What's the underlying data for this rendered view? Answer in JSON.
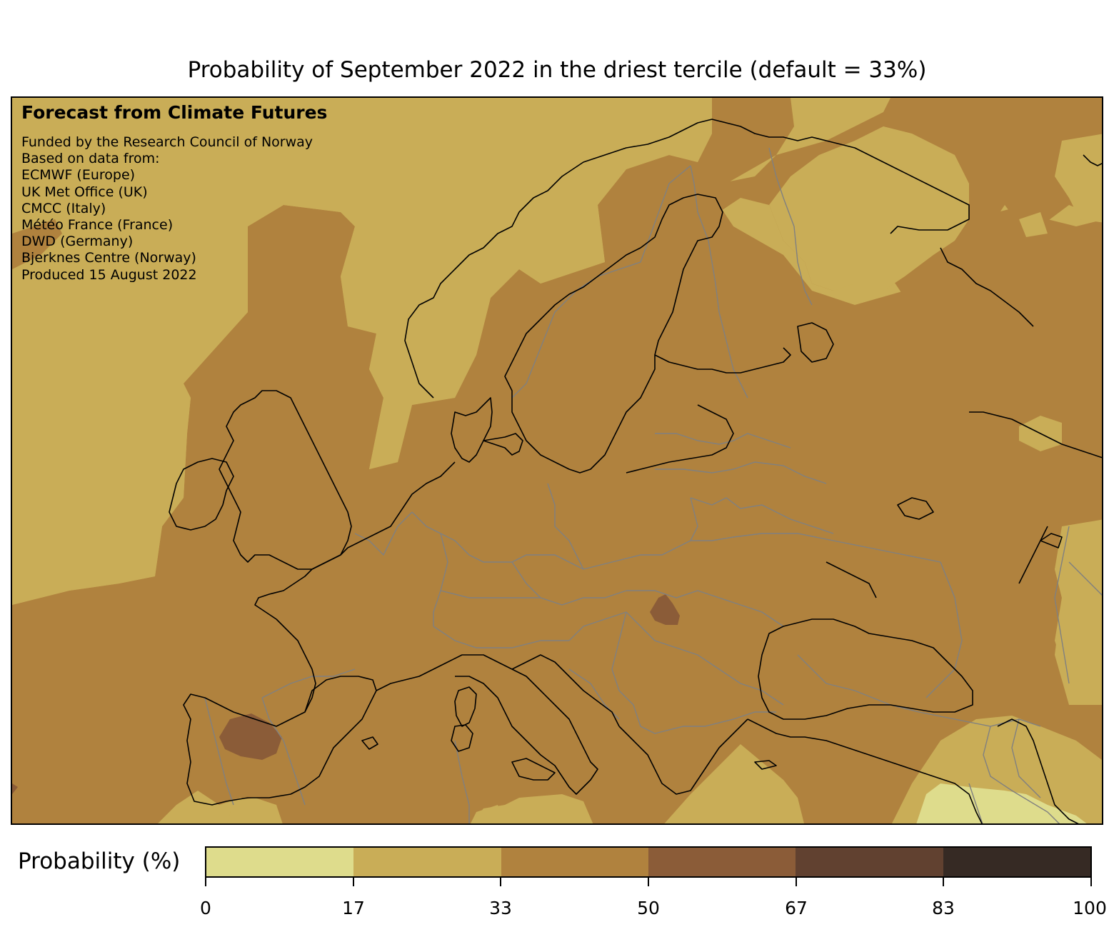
{
  "title": "Probability of September 2022 in the driest tercile (default = 33%)",
  "credits": {
    "heading": "Forecast from Climate Futures",
    "lines": [
      "Funded by the Research Council of Norway",
      "Based on data from:",
      "ECMWF (Europe)",
      "UK Met Office (UK)",
      "CMCC (Italy)",
      "Météo France (France)",
      "DWD (Germany)",
      "Bjerknes Centre (Norway)",
      "Produced 15 August 2022"
    ]
  },
  "colorbar": {
    "label": "Probability (%)",
    "ticks": [
      "0",
      "17",
      "33",
      "50",
      "67",
      "83",
      "100"
    ],
    "colors": [
      "#dedc8c",
      "#c9ad57",
      "#b0823e",
      "#8b5c38",
      "#614130",
      "#362a24"
    ]
  },
  "map": {
    "region": "Europe",
    "dominant_class": "33-50",
    "colors": {
      "class_17_33": "#c9ad57",
      "class_33_50": "#b0823e",
      "class_50_67": "#8b5c38",
      "class_0_17": "#dedc8c",
      "coastline": "#000000",
      "borders": "#808080"
    }
  }
}
